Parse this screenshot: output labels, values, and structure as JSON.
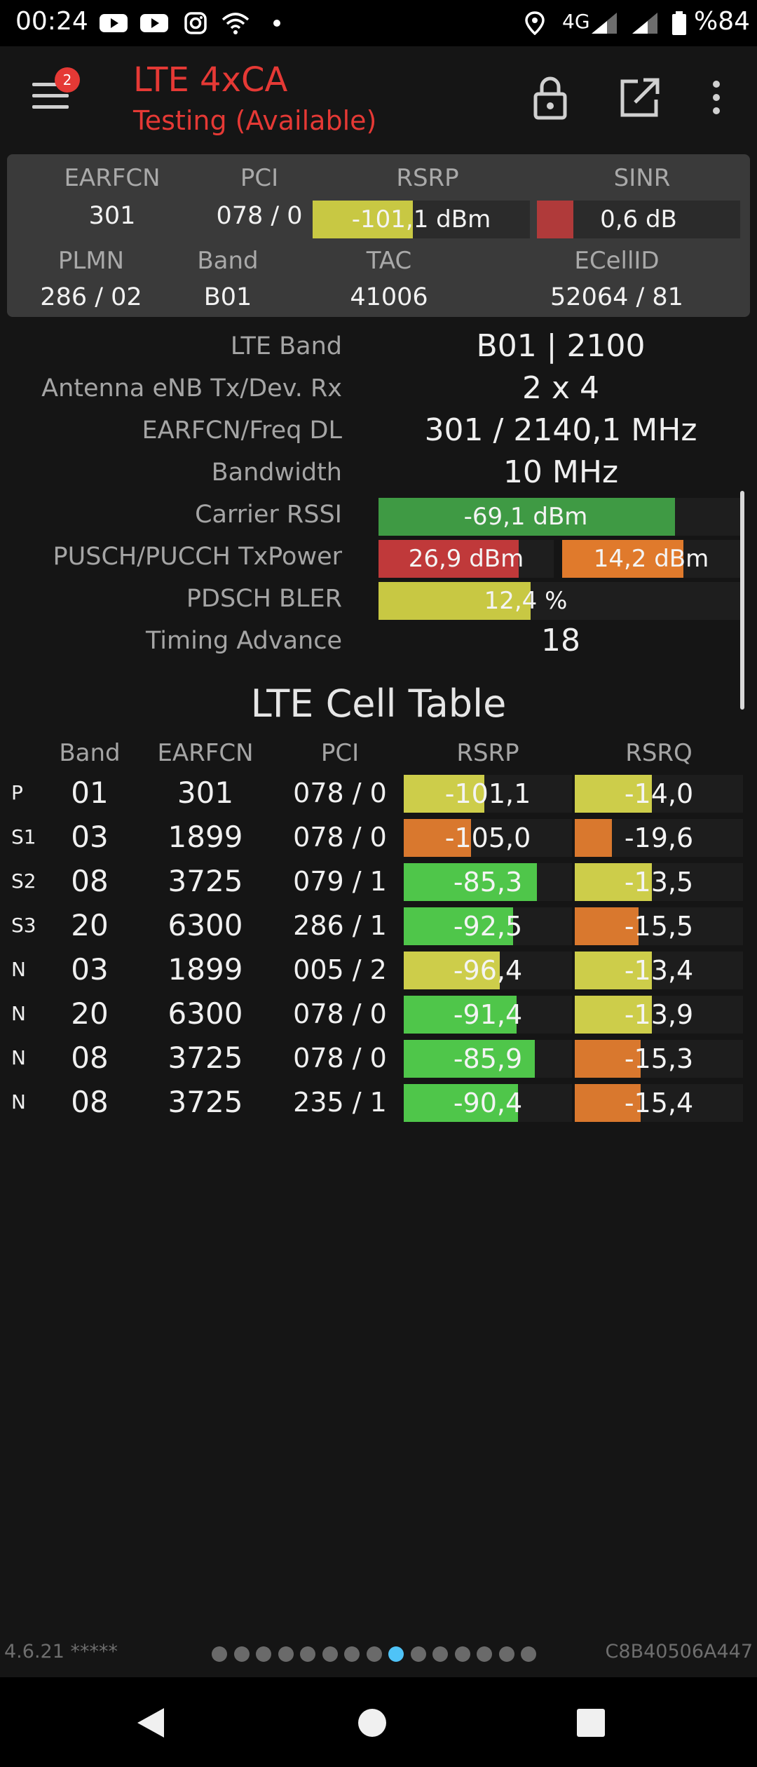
{
  "status_bar": {
    "time": "00:24",
    "network": "4G",
    "battery": "%84",
    "icons": [
      "youtube-icon",
      "youtube-icon",
      "instagram-icon",
      "wifi-icon",
      "dot-icon",
      "location-icon",
      "signal-icon",
      "signal-icon",
      "battery-icon"
    ]
  },
  "app_bar": {
    "title": "LTE 4xCA",
    "subtitle": "Testing (Available)",
    "badge_count": "2",
    "icons": [
      "menu-icon",
      "lock-icon",
      "open-external-icon",
      "more-vert-icon"
    ]
  },
  "summary": {
    "headers": {
      "earfcn": "EARFCN",
      "pci": "PCI",
      "rsrp": "RSRP",
      "sinr": "SINR",
      "plmn": "PLMN",
      "band": "Band",
      "tac": "TAC",
      "ecellid": "ECellID"
    },
    "values": {
      "earfcn": "301",
      "pci": "078 / 0",
      "rsrp": "-101,1 dBm",
      "sinr": "0,6 dB",
      "plmn": "286 / 02",
      "band": "B01",
      "tac": "41006",
      "ecellid": "52064 / 81"
    },
    "rsrp_level": 0.46,
    "rsrp_color": "#c8c843",
    "sinr_level": 0.18,
    "sinr_color": "#b03a3a"
  },
  "details": {
    "lte_band": {
      "label": "LTE Band",
      "value": "B01 | 2100"
    },
    "antenna": {
      "label": "Antenna eNB Tx/Dev. Rx",
      "value": "2 x 4"
    },
    "earfcn_freq": {
      "label": "EARFCN/Freq DL",
      "value": "301 / 2140,1 MHz"
    },
    "bandwidth": {
      "label": "Bandwidth",
      "value": "10 MHz"
    },
    "carrier_rssi": {
      "label": "Carrier RSSI",
      "value": "-69,1 dBm",
      "level": 0.82,
      "color": "#3f9a44"
    },
    "txpower": {
      "label": "PUSCH/PUCCH TxPower",
      "pusch": "26,9 dBm",
      "pusch_level": 0.8,
      "pusch_color": "#c0393a",
      "pucch": "14,2 dBm",
      "pucch_level": 0.68,
      "pucch_color": "#e07a2c"
    },
    "bler": {
      "label": "PDSCH BLER",
      "value": "12,4 %",
      "level": 0.42,
      "color": "#c8c843"
    },
    "timing_advance": {
      "label": "Timing Advance",
      "value": "18"
    }
  },
  "cell_table": {
    "title": "LTE Cell Table",
    "headers": {
      "band": "Band",
      "earfcn": "EARFCN",
      "pci": "PCI",
      "rsrp": "RSRP",
      "rsrq": "RSRQ"
    },
    "rows": [
      {
        "type": "P",
        "band": "01",
        "earfcn": "301",
        "pci": "078 / 0",
        "rsrp": "-101,1",
        "rsrp_level": 0.48,
        "rsrp_color": "#cdcd4a",
        "rsrq": "-14,0",
        "rsrq_level": 0.46,
        "rsrq_color": "#cdcd4a"
      },
      {
        "type": "S1",
        "band": "03",
        "earfcn": "1899",
        "pci": "078 / 0",
        "rsrp": "-105,0",
        "rsrp_level": 0.4,
        "rsrp_color": "#d9782e",
        "rsrq": "-19,6",
        "rsrq_level": 0.22,
        "rsrq_color": "#d9782e"
      },
      {
        "type": "S2",
        "band": "08",
        "earfcn": "3725",
        "pci": "079 / 1",
        "rsrp": "-85,3",
        "rsrp_level": 0.79,
        "rsrp_color": "#4fc64a",
        "rsrq": "-13,5",
        "rsrq_level": 0.46,
        "rsrq_color": "#cdcd4a"
      },
      {
        "type": "S3",
        "band": "20",
        "earfcn": "6300",
        "pci": "286 / 1",
        "rsrp": "-92,5",
        "rsrp_level": 0.65,
        "rsrp_color": "#4fc64a",
        "rsrq": "-15,5",
        "rsrq_level": 0.38,
        "rsrq_color": "#d9782e"
      },
      {
        "type": "N",
        "band": "03",
        "earfcn": "1899",
        "pci": "005 / 2",
        "rsrp": "-96,4",
        "rsrp_level": 0.57,
        "rsrp_color": "#cdcd4a",
        "rsrq": "-13,4",
        "rsrq_level": 0.46,
        "rsrq_color": "#cdcd4a"
      },
      {
        "type": "N",
        "band": "20",
        "earfcn": "6300",
        "pci": "078 / 0",
        "rsrp": "-91,4",
        "rsrp_level": 0.67,
        "rsrp_color": "#4fc64a",
        "rsrq": "-13,9",
        "rsrq_level": 0.46,
        "rsrq_color": "#cdcd4a"
      },
      {
        "type": "N",
        "band": "08",
        "earfcn": "3725",
        "pci": "078 / 0",
        "rsrp": "-85,9",
        "rsrp_level": 0.78,
        "rsrp_color": "#4fc64a",
        "rsrq": "-15,3",
        "rsrq_level": 0.39,
        "rsrq_color": "#d9782e"
      },
      {
        "type": "N",
        "band": "08",
        "earfcn": "3725",
        "pci": "235 / 1",
        "rsrp": "-90,4",
        "rsrp_level": 0.68,
        "rsrp_color": "#4fc64a",
        "rsrq": "-15,4",
        "rsrq_level": 0.39,
        "rsrq_color": "#d9782e"
      }
    ]
  },
  "footer": {
    "version": "4.6.21 *****",
    "device_id": "C8B40506A447",
    "page_count": 15,
    "active_page": 8
  },
  "nav_bar": {
    "icons": [
      "back-icon",
      "home-icon",
      "recents-icon"
    ]
  }
}
